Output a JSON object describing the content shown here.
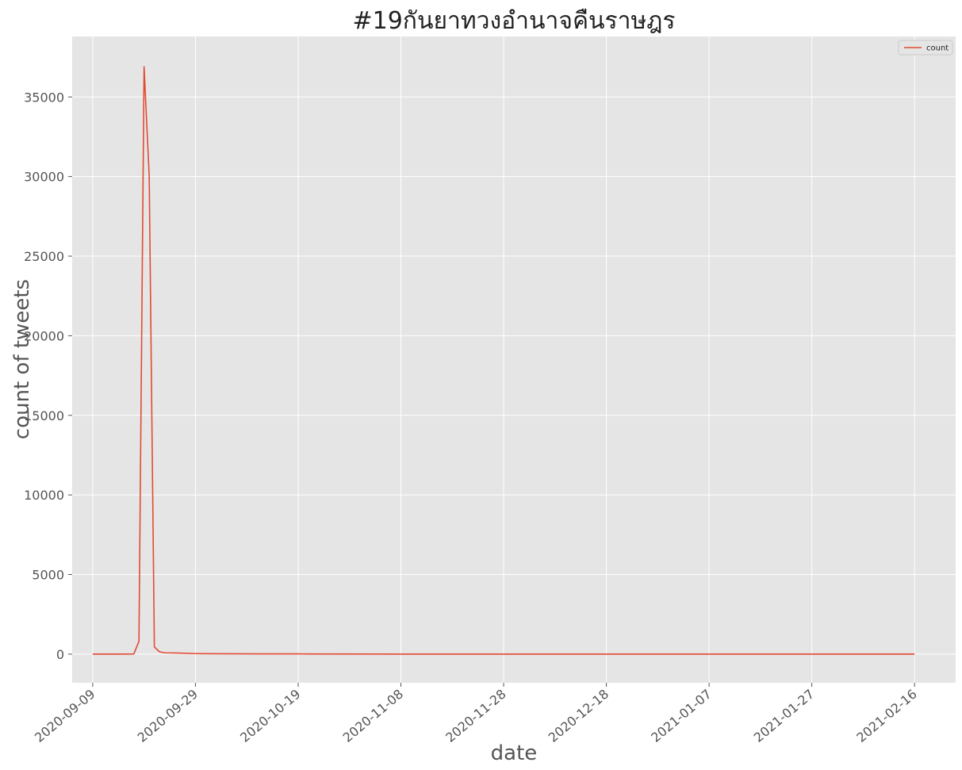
{
  "chart_data": {
    "type": "line",
    "title": "#19กันยาทวงอำนาจคืนราษฎร",
    "xlabel": "date",
    "ylabel": "count of tweets",
    "x_type": "date",
    "xlim": [
      "2020-09-05",
      "2021-02-24"
    ],
    "ylim": [
      -1800,
      38800
    ],
    "x_ticks": [
      "2020-09-09",
      "2020-09-29",
      "2020-10-19",
      "2020-11-08",
      "2020-11-28",
      "2020-12-18",
      "2021-01-07",
      "2021-01-27",
      "2021-02-16"
    ],
    "y_ticks": [
      0,
      5000,
      10000,
      15000,
      20000,
      25000,
      30000,
      35000
    ],
    "grid": true,
    "legend_position": "top-right",
    "series": [
      {
        "name": "count",
        "color": "#e24a33",
        "points": [
          [
            "2020-09-09",
            5
          ],
          [
            "2020-09-12",
            5
          ],
          [
            "2020-09-15",
            5
          ],
          [
            "2020-09-17",
            10
          ],
          [
            "2020-09-18",
            800
          ],
          [
            "2020-09-19",
            36900
          ],
          [
            "2020-09-20",
            30000
          ],
          [
            "2020-09-21",
            450
          ],
          [
            "2020-09-22",
            150
          ],
          [
            "2020-09-23",
            80
          ],
          [
            "2020-09-25",
            70
          ],
          [
            "2020-09-27",
            50
          ],
          [
            "2020-09-29",
            30
          ],
          [
            "2020-10-05",
            20
          ],
          [
            "2020-10-12",
            15
          ],
          [
            "2020-10-19",
            15
          ],
          [
            "2020-10-21",
            8
          ],
          [
            "2020-11-08",
            5
          ],
          [
            "2020-12-18",
            5
          ],
          [
            "2021-01-27",
            5
          ],
          [
            "2021-02-16",
            5
          ]
        ]
      }
    ]
  }
}
